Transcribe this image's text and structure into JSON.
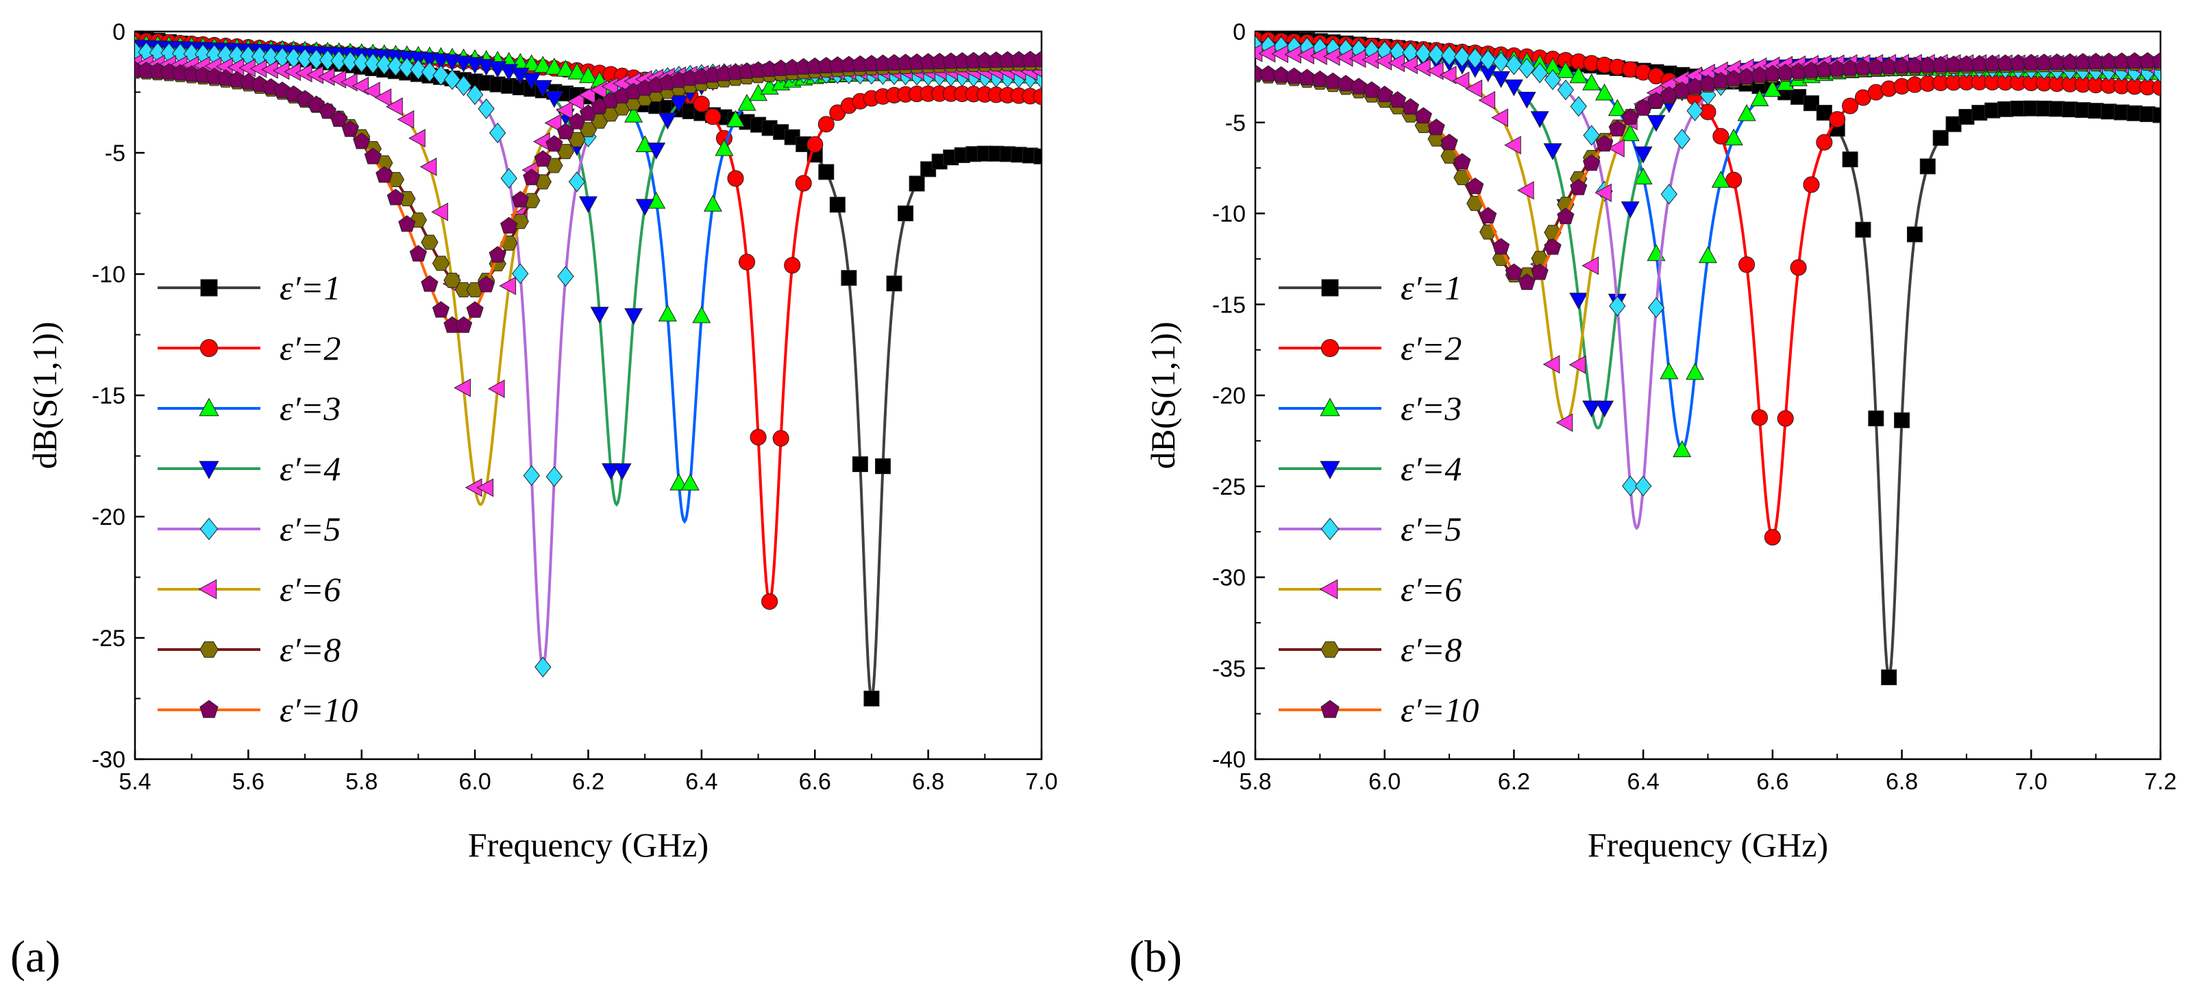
{
  "panels_meta": {
    "count": 2
  },
  "chart_data": [
    {
      "type": "line",
      "panel_label": "(a)",
      "title": "",
      "xlabel": "Frequency (GHz)",
      "ylabel": "dB(S(1,1))",
      "xlim": [
        5.4,
        7.0
      ],
      "ylim": [
        -30,
        0
      ],
      "xticks": [
        5.4,
        5.6,
        5.8,
        6.0,
        6.2,
        6.4,
        6.6,
        6.8,
        7.0
      ],
      "xtick_labels": [
        "5.4",
        "5.6",
        "5.8",
        "6.0",
        "6.2",
        "6.4",
        "6.6",
        "6.8",
        "7.0"
      ],
      "yticks": [
        0,
        -5,
        -10,
        -15,
        -20,
        -25,
        -30
      ],
      "ytick_labels": [
        "0",
        "-5",
        "-10",
        "-15",
        "-20",
        "-25",
        "-30"
      ],
      "legend_position": "left",
      "series": [
        {
          "name": "ε′=1",
          "color": "#404040",
          "marker_color": "#000000",
          "marker": "square",
          "resonance_ghz": 6.7,
          "min_db": -27.5,
          "q": 70,
          "baseline": [
            5.4,
            -0.25,
            7.0,
            -5.0
          ]
        },
        {
          "name": "ε′=2",
          "color": "#ff0000",
          "marker_color": "#ff0000",
          "marker": "circle",
          "resonance_ghz": 6.52,
          "min_db": -23.5,
          "q": 55,
          "baseline": [
            5.4,
            -0.35,
            7.0,
            -2.6
          ]
        },
        {
          "name": "ε′=3",
          "color": "#0060ff",
          "marker_color": "#00ff00",
          "marker": "triangle-up",
          "resonance_ghz": 6.37,
          "min_db": -20.2,
          "q": 48,
          "baseline": [
            5.4,
            -0.5,
            7.0,
            -1.8
          ]
        },
        {
          "name": "ε′=4",
          "color": "#2aa05a",
          "marker_color": "#0000ff",
          "marker": "triangle-down",
          "resonance_ghz": 6.25,
          "min_db": -19.5,
          "q": 45,
          "baseline": [
            5.4,
            -0.6,
            7.0,
            -1.7
          ]
        },
        {
          "name": "ε′=5",
          "color": "#b36ad8",
          "marker_color": "#33ddff",
          "marker": "diamond",
          "resonance_ghz": 6.12,
          "min_db": -26.2,
          "q": 52,
          "baseline": [
            5.4,
            -0.8,
            7.0,
            -1.9
          ]
        },
        {
          "name": "ε′=6",
          "color": "#c8a000",
          "marker_color": "#ff33dd",
          "marker": "triangle-left",
          "resonance_ghz": 6.01,
          "min_db": -19.5,
          "q": 30,
          "baseline": [
            5.4,
            -1.2,
            7.0,
            -1.6
          ]
        },
        {
          "name": "ε′=8",
          "color": "#7a1a1a",
          "marker_color": "#807000",
          "marker": "hexagon",
          "resonance_ghz": 5.99,
          "min_db": -10.7,
          "q": 11,
          "baseline": [
            5.4,
            -1.2,
            7.0,
            -1.1
          ]
        },
        {
          "name": "ε′=10",
          "color": "#ff6600",
          "marker_color": "#800060",
          "marker": "pentagon",
          "resonance_ghz": 5.97,
          "min_db": -12.2,
          "q": 13,
          "baseline": [
            5.4,
            -1.2,
            7.0,
            -1.0
          ]
        }
      ]
    },
    {
      "type": "line",
      "panel_label": "(b)",
      "title": "",
      "xlabel": "Frequency (GHz)",
      "ylabel": "dB(S(1,1))",
      "xlim": [
        5.8,
        7.2
      ],
      "ylim": [
        -40,
        0
      ],
      "xticks": [
        5.8,
        6.0,
        6.2,
        6.4,
        6.6,
        6.8,
        7.0,
        7.2
      ],
      "xtick_labels": [
        "5.8",
        "6.0",
        "6.2",
        "6.4",
        "6.6",
        "6.8",
        "7.0",
        "7.2"
      ],
      "yticks": [
        0,
        -5,
        -10,
        -15,
        -20,
        -25,
        -30,
        -35,
        -40
      ],
      "ytick_labels": [
        "0",
        "-5",
        "-10",
        "-15",
        "-20",
        "-25",
        "-30",
        "-35",
        "-40"
      ],
      "legend_position": "left",
      "series": [
        {
          "name": "ε′=1",
          "color": "#404040",
          "marker_color": "#000000",
          "marker": "square",
          "resonance_ghz": 6.78,
          "min_db": -35.5,
          "q": 75,
          "baseline": [
            5.8,
            -0.2,
            7.2,
            -4.5
          ]
        },
        {
          "name": "ε′=2",
          "color": "#ff0000",
          "marker_color": "#ff0000",
          "marker": "circle",
          "resonance_ghz": 6.6,
          "min_db": -27.8,
          "q": 48,
          "baseline": [
            5.8,
            -0.4,
            7.2,
            -3.0
          ]
        },
        {
          "name": "ε′=3",
          "color": "#0060ff",
          "marker_color": "#00ff00",
          "marker": "triangle-up",
          "resonance_ghz": 6.46,
          "min_db": -23.0,
          "q": 40,
          "baseline": [
            5.8,
            -0.6,
            7.2,
            -2.2
          ]
        },
        {
          "name": "ε′=4",
          "color": "#2aa05a",
          "marker_color": "#0000ff",
          "marker": "triangle-down",
          "resonance_ghz": 6.33,
          "min_db": -21.8,
          "q": 38,
          "baseline": [
            5.8,
            -0.8,
            7.2,
            -2.0
          ]
        },
        {
          "name": "ε′=5",
          "color": "#b36ad8",
          "marker_color": "#33ddff",
          "marker": "diamond",
          "resonance_ghz": 6.39,
          "min_db": -27.3,
          "q": 50,
          "baseline": [
            5.8,
            -0.7,
            7.2,
            -2.2
          ]
        },
        {
          "name": "ε′=6",
          "color": "#c8a000",
          "marker_color": "#ff33dd",
          "marker": "triangle-left",
          "resonance_ghz": 6.28,
          "min_db": -21.5,
          "q": 34,
          "baseline": [
            5.8,
            -1.0,
            7.2,
            -1.8
          ]
        },
        {
          "name": "ε′=8",
          "color": "#7a1a1a",
          "marker_color": "#807000",
          "marker": "hexagon",
          "resonance_ghz": 6.21,
          "min_db": -13.5,
          "q": 16,
          "baseline": [
            5.8,
            -1.8,
            7.2,
            -1.6
          ]
        },
        {
          "name": "ε′=10",
          "color": "#ff6600",
          "marker_color": "#800060",
          "marker": "pentagon",
          "resonance_ghz": 6.22,
          "min_db": -13.8,
          "q": 17,
          "baseline": [
            5.8,
            -1.8,
            7.2,
            -1.5
          ]
        }
      ]
    }
  ]
}
